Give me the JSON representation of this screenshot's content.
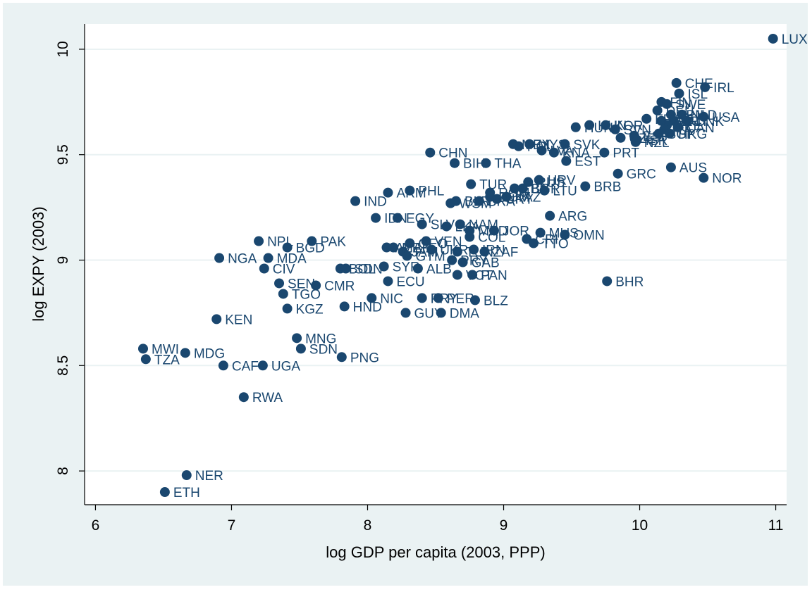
{
  "chart_data": {
    "type": "scatter",
    "xlabel": "log GDP per capita (2003, PPP)",
    "ylabel": "log EXPY (2003)",
    "xlim": [
      5.92,
      11.08
    ],
    "ylim": [
      7.84,
      10.12
    ],
    "xticks": [
      6,
      7,
      8,
      9,
      10,
      11
    ],
    "yticks": [
      8,
      8.5,
      9,
      9.5,
      10
    ],
    "xtick_labels": [
      "6",
      "7",
      "8",
      "9",
      "10",
      "11"
    ],
    "ytick_labels": [
      "8",
      "8.5",
      "9",
      "9.5",
      "10"
    ],
    "grid": "horizontal",
    "marker_color": "#1a476f",
    "background_outer": "#eaf2f3",
    "background_plot": "#ffffff",
    "points": [
      {
        "x": 10.98,
        "y": 10.05,
        "label": "LUX"
      },
      {
        "x": 10.27,
        "y": 9.84,
        "label": "CHE"
      },
      {
        "x": 10.48,
        "y": 9.82,
        "label": "IRL"
      },
      {
        "x": 10.29,
        "y": 9.79,
        "label": "ISL"
      },
      {
        "x": 10.16,
        "y": 9.75,
        "label": "FIN"
      },
      {
        "x": 10.2,
        "y": 9.74,
        "label": "SWE"
      },
      {
        "x": 10.13,
        "y": 9.71,
        "label": "DEU"
      },
      {
        "x": 10.23,
        "y": 9.69,
        "label": "JPN"
      },
      {
        "x": 10.31,
        "y": 9.69,
        "label": "NLD"
      },
      {
        "x": 10.47,
        "y": 9.68,
        "label": "USA"
      },
      {
        "x": 10.05,
        "y": 9.67,
        "label": "FRA"
      },
      {
        "x": 10.16,
        "y": 9.66,
        "label": "GBR"
      },
      {
        "x": 10.25,
        "y": 9.66,
        "label": "AUT"
      },
      {
        "x": 10.35,
        "y": 9.66,
        "label": "DNK"
      },
      {
        "x": 10.2,
        "y": 9.64,
        "label": "BEL"
      },
      {
        "x": 10.28,
        "y": 9.63,
        "label": "CAN"
      },
      {
        "x": 10.18,
        "y": 9.62,
        "label": "ITA"
      },
      {
        "x": 9.75,
        "y": 9.64,
        "label": "KOR"
      },
      {
        "x": 9.63,
        "y": 9.64,
        "label": "HUN"
      },
      {
        "x": 9.53,
        "y": 9.63,
        "label": "HUN"
      },
      {
        "x": 9.82,
        "y": 9.62,
        "label": "SVN"
      },
      {
        "x": 10.14,
        "y": 9.6,
        "label": "SGP"
      },
      {
        "x": 10.22,
        "y": 9.6,
        "label": "HKG"
      },
      {
        "x": 9.96,
        "y": 9.59,
        "label": "ESP"
      },
      {
        "x": 9.98,
        "y": 9.57,
        "label": "ISR"
      },
      {
        "x": 9.86,
        "y": 9.58,
        "label": "CZE"
      },
      {
        "x": 9.97,
        "y": 9.56,
        "label": "NZL"
      },
      {
        "x": 9.07,
        "y": 9.55,
        "label": "MEX"
      },
      {
        "x": 9.19,
        "y": 9.55,
        "label": "MYS"
      },
      {
        "x": 9.45,
        "y": 9.55,
        "label": "SVK"
      },
      {
        "x": 9.11,
        "y": 9.54,
        "label": "POL"
      },
      {
        "x": 9.28,
        "y": 9.52,
        "label": "LVA"
      },
      {
        "x": 9.37,
        "y": 9.51,
        "label": "KNA"
      },
      {
        "x": 9.74,
        "y": 9.51,
        "label": "PRT"
      },
      {
        "x": 8.46,
        "y": 9.51,
        "label": "CHN"
      },
      {
        "x": 9.46,
        "y": 9.47,
        "label": "EST"
      },
      {
        "x": 8.64,
        "y": 9.46,
        "label": "BIH"
      },
      {
        "x": 8.87,
        "y": 9.46,
        "label": "THA"
      },
      {
        "x": 10.23,
        "y": 9.44,
        "label": "AUS"
      },
      {
        "x": 9.84,
        "y": 9.41,
        "label": "GRC"
      },
      {
        "x": 10.47,
        "y": 9.39,
        "label": "NOR"
      },
      {
        "x": 9.26,
        "y": 9.38,
        "label": "HRV"
      },
      {
        "x": 9.18,
        "y": 9.37,
        "label": "RUS"
      },
      {
        "x": 8.76,
        "y": 9.36,
        "label": "TUR"
      },
      {
        "x": 9.6,
        "y": 9.35,
        "label": "BRB"
      },
      {
        "x": 9.08,
        "y": 9.34,
        "label": "LBN"
      },
      {
        "x": 9.14,
        "y": 9.34,
        "label": "BGR"
      },
      {
        "x": 9.3,
        "y": 9.33,
        "label": "LTU"
      },
      {
        "x": 8.31,
        "y": 9.33,
        "label": "PHL"
      },
      {
        "x": 8.15,
        "y": 9.32,
        "label": "ARM"
      },
      {
        "x": 8.9,
        "y": 9.32,
        "label": "ROM"
      },
      {
        "x": 9.02,
        "y": 9.3,
        "label": "KAZ"
      },
      {
        "x": 8.9,
        "y": 9.3,
        "label": "DOM"
      },
      {
        "x": 8.95,
        "y": 9.29,
        "label": "URY"
      },
      {
        "x": 8.82,
        "y": 9.28,
        "label": "BRA"
      },
      {
        "x": 7.91,
        "y": 9.28,
        "label": "IND"
      },
      {
        "x": 8.65,
        "y": 9.28,
        "label": "BLR"
      },
      {
        "x": 8.61,
        "y": 9.27,
        "label": "WSM"
      },
      {
        "x": 9.34,
        "y": 9.21,
        "label": "ARG"
      },
      {
        "x": 8.06,
        "y": 9.2,
        "label": "IDN"
      },
      {
        "x": 8.22,
        "y": 9.2,
        "label": "EGY"
      },
      {
        "x": 8.4,
        "y": 9.17,
        "label": "SLV"
      },
      {
        "x": 8.58,
        "y": 9.16,
        "label": "LKA"
      },
      {
        "x": 8.68,
        "y": 9.17,
        "label": "NAM"
      },
      {
        "x": 8.75,
        "y": 9.14,
        "label": "MKD"
      },
      {
        "x": 8.93,
        "y": 9.14,
        "label": "JOR"
      },
      {
        "x": 9.27,
        "y": 9.13,
        "label": "MUS"
      },
      {
        "x": 9.45,
        "y": 9.12,
        "label": "OMN"
      },
      {
        "x": 8.75,
        "y": 9.11,
        "label": "COL"
      },
      {
        "x": 9.17,
        "y": 9.1,
        "label": "CRI"
      },
      {
        "x": 9.22,
        "y": 9.08,
        "label": "TTO"
      },
      {
        "x": 7.2,
        "y": 9.09,
        "label": "NPL"
      },
      {
        "x": 7.59,
        "y": 9.09,
        "label": "PAK"
      },
      {
        "x": 8.43,
        "y": 9.09,
        "label": "VEN"
      },
      {
        "x": 8.31,
        "y": 9.08,
        "label": "GEO"
      },
      {
        "x": 7.41,
        "y": 9.06,
        "label": "BGD"
      },
      {
        "x": 8.14,
        "y": 9.06,
        "label": "AZE"
      },
      {
        "x": 8.19,
        "y": 9.06,
        "label": "MAR"
      },
      {
        "x": 8.47,
        "y": 9.05,
        "label": "UKR"
      },
      {
        "x": 8.78,
        "y": 9.05,
        "label": "IRN"
      },
      {
        "x": 8.26,
        "y": 9.04,
        "label": "JAM"
      },
      {
        "x": 8.66,
        "y": 9.04,
        "label": "TUN"
      },
      {
        "x": 8.86,
        "y": 9.04,
        "label": "ZAF"
      },
      {
        "x": 8.29,
        "y": 9.02,
        "label": "GTM"
      },
      {
        "x": 6.91,
        "y": 9.01,
        "label": "NGA"
      },
      {
        "x": 7.27,
        "y": 9.01,
        "label": "MDA"
      },
      {
        "x": 8.62,
        "y": 9.0,
        "label": "PRY"
      },
      {
        "x": 8.7,
        "y": 8.99,
        "label": "GAB"
      },
      {
        "x": 8.12,
        "y": 8.97,
        "label": "SYR"
      },
      {
        "x": 7.24,
        "y": 8.96,
        "label": "CIV"
      },
      {
        "x": 7.8,
        "y": 8.96,
        "label": "BOL"
      },
      {
        "x": 7.84,
        "y": 8.96,
        "label": "SDN"
      },
      {
        "x": 8.37,
        "y": 8.96,
        "label": "ALB"
      },
      {
        "x": 8.66,
        "y": 8.93,
        "label": "VCT"
      },
      {
        "x": 8.77,
        "y": 8.93,
        "label": "PAN"
      },
      {
        "x": 9.76,
        "y": 8.9,
        "label": "BHR"
      },
      {
        "x": 7.35,
        "y": 8.89,
        "label": "SEN"
      },
      {
        "x": 8.15,
        "y": 8.9,
        "label": "ECU"
      },
      {
        "x": 7.62,
        "y": 8.88,
        "label": "CMR"
      },
      {
        "x": 7.38,
        "y": 8.84,
        "label": "TGO"
      },
      {
        "x": 8.03,
        "y": 8.82,
        "label": "NIC"
      },
      {
        "x": 8.4,
        "y": 8.82,
        "label": "PRY"
      },
      {
        "x": 8.52,
        "y": 8.82,
        "label": "PER"
      },
      {
        "x": 8.79,
        "y": 8.81,
        "label": "BLZ"
      },
      {
        "x": 7.83,
        "y": 8.78,
        "label": "HND"
      },
      {
        "x": 7.41,
        "y": 8.77,
        "label": "KGZ"
      },
      {
        "x": 8.28,
        "y": 8.75,
        "label": "GUY"
      },
      {
        "x": 8.54,
        "y": 8.75,
        "label": "DMA"
      },
      {
        "x": 6.89,
        "y": 8.72,
        "label": "KEN"
      },
      {
        "x": 7.48,
        "y": 8.63,
        "label": "MNG"
      },
      {
        "x": 7.51,
        "y": 8.58,
        "label": "SDN"
      },
      {
        "x": 6.35,
        "y": 8.58,
        "label": "MWI"
      },
      {
        "x": 6.66,
        "y": 8.56,
        "label": "MDG"
      },
      {
        "x": 7.81,
        "y": 8.54,
        "label": "PNG"
      },
      {
        "x": 6.37,
        "y": 8.53,
        "label": "TZA"
      },
      {
        "x": 6.94,
        "y": 8.5,
        "label": "CAF"
      },
      {
        "x": 7.23,
        "y": 8.5,
        "label": "UGA"
      },
      {
        "x": 7.09,
        "y": 8.35,
        "label": "RWA"
      },
      {
        "x": 6.67,
        "y": 7.98,
        "label": "NER"
      },
      {
        "x": 6.51,
        "y": 7.9,
        "label": "ETH"
      }
    ]
  }
}
